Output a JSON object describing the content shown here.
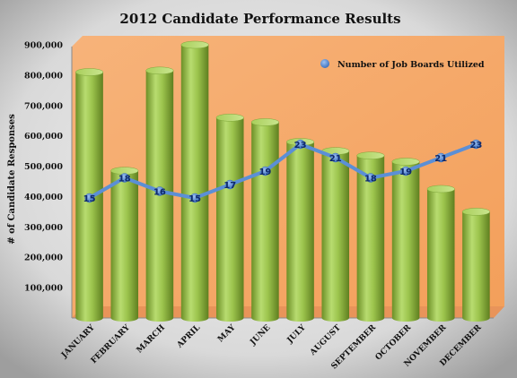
{
  "chart_data": {
    "type": "bar",
    "title": "2012 Candidate Performance Results",
    "ylabel": "# of Candidate Responses",
    "xlabel": "",
    "ylim": [
      0,
      900000
    ],
    "yticks": [
      "100,000",
      "200,000",
      "300,000",
      "400,000",
      "500,000",
      "600,000",
      "700,000",
      "800,000",
      "900,000"
    ],
    "ytick_values": [
      100000,
      200000,
      300000,
      400000,
      500000,
      600000,
      700000,
      800000,
      900000
    ],
    "categories": [
      "JANUARY",
      "FEBRUARY",
      "MARCH",
      "APRIL",
      "MAY",
      "JUNE",
      "JULY",
      "AUGUST",
      "SEPTEMBER",
      "OCTOBER",
      "NOVEMBER",
      "DECEMBER"
    ],
    "bar_series": {
      "name": "",
      "values": [
        810000,
        485000,
        815000,
        900000,
        660000,
        645000,
        580000,
        550000,
        535000,
        515000,
        425000,
        350000
      ]
    },
    "line_series": {
      "name": "Number of Job Boards Utilized",
      "values": [
        15,
        18,
        16,
        15,
        17,
        19,
        23,
        21,
        18,
        19,
        21,
        23
      ]
    },
    "legend_position": "top-right",
    "grid": false,
    "colors": {
      "background_outer": "#cfcfcf",
      "plot_bg": "#f5a868",
      "bar": "#8fb542",
      "line": "#5b8fd6",
      "line_label": "#0f2a6b"
    }
  }
}
